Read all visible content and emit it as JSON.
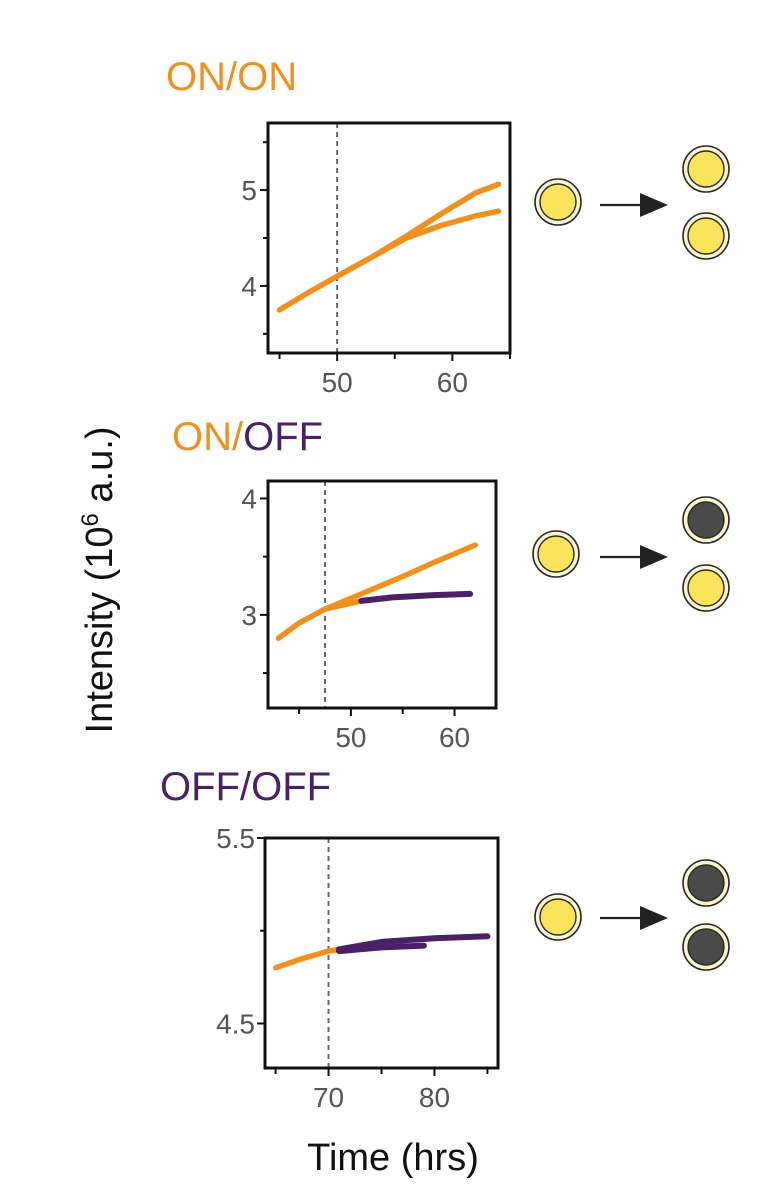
{
  "colors": {
    "on": "#F0901E",
    "off": "#4A2066",
    "cell_on_fill": "#F9E45C",
    "cell_off_fill": "#4A4A4A",
    "cell_ring": "#2E2A1F",
    "cell_ring_fill": "#FBF6D6",
    "arrow": "#222222",
    "axis": "#111111",
    "marker_line": "#666666"
  },
  "labels": {
    "ylabel_main": "Intensity (10",
    "ylabel_exp": "6",
    "ylabel_tail": " a.u.)",
    "xlabel": "Time (hrs)"
  },
  "chart_data": [
    {
      "type": "line",
      "title_parts": [
        {
          "text": "ON/ON",
          "state": "on"
        }
      ],
      "xlabel": "Time (hrs)",
      "ylabel": "Intensity (10^6 a.u.)",
      "xlim": [
        44,
        65
      ],
      "ylim": [
        3.3,
        5.7
      ],
      "xticks": [
        50,
        60
      ],
      "xminor": [
        45,
        55,
        65
      ],
      "yticks": [
        4,
        5
      ],
      "yminor": [
        3.5,
        4.5,
        5.5
      ],
      "ytick_labels": [
        "4",
        "5"
      ],
      "division_time": 50,
      "series": [
        {
          "state": "on",
          "x": [
            45,
            47.5,
            50
          ],
          "y": [
            3.75,
            3.93,
            4.1
          ]
        },
        {
          "state": "on",
          "x": [
            50,
            53,
            56,
            59,
            62,
            64
          ],
          "y": [
            4.1,
            4.3,
            4.52,
            4.75,
            4.97,
            5.06
          ]
        },
        {
          "state": "on",
          "x": [
            50,
            53,
            56,
            59,
            62,
            64
          ],
          "y": [
            4.1,
            4.3,
            4.5,
            4.63,
            4.73,
            4.78
          ]
        }
      ],
      "schematic": {
        "mother": "on",
        "daughters": [
          "on",
          "on"
        ]
      }
    },
    {
      "type": "line",
      "title_parts": [
        {
          "text": "ON/",
          "state": "on"
        },
        {
          "text": "OFF",
          "state": "off"
        }
      ],
      "xlabel": "Time (hrs)",
      "ylabel": "Intensity (10^6 a.u.)",
      "xlim": [
        42,
        64
      ],
      "ylim": [
        2.2,
        4.15
      ],
      "xticks": [
        50,
        60
      ],
      "xminor": [
        45,
        55,
        65
      ],
      "yticks": [
        3,
        4
      ],
      "yminor": [
        2.5,
        3.5
      ],
      "ytick_labels": [
        "3",
        "4"
      ],
      "division_time": 47.5,
      "series": [
        {
          "state": "on",
          "x": [
            43,
            45,
            47.5
          ],
          "y": [
            2.8,
            2.93,
            3.05
          ]
        },
        {
          "state": "on",
          "x": [
            47.5,
            51,
            55,
            58,
            62
          ],
          "y": [
            3.05,
            3.18,
            3.33,
            3.45,
            3.6
          ]
        },
        {
          "state": "on",
          "x": [
            47.5,
            49,
            51
          ],
          "y": [
            3.05,
            3.08,
            3.12
          ]
        },
        {
          "state": "off",
          "x": [
            51,
            54,
            58,
            61.5
          ],
          "y": [
            3.12,
            3.15,
            3.17,
            3.18
          ]
        }
      ],
      "schematic": {
        "mother": "on",
        "daughters": [
          "off",
          "on"
        ]
      }
    },
    {
      "type": "line",
      "title_parts": [
        {
          "text": "OFF/OFF",
          "state": "off"
        }
      ],
      "xlabel": "Time (hrs)",
      "ylabel": "Intensity (10^6 a.u.)",
      "xlim": [
        64,
        86
      ],
      "ylim": [
        4.26,
        5.5
      ],
      "xticks": [
        70,
        80
      ],
      "xminor": [
        65,
        75,
        85
      ],
      "yticks": [
        4.5,
        5.5
      ],
      "yminor": [
        5.0
      ],
      "ytick_labels": [
        "4.5",
        "5.5"
      ],
      "division_time": 70,
      "series": [
        {
          "state": "on",
          "x": [
            65,
            67.5,
            70,
            71
          ],
          "y": [
            4.8,
            4.85,
            4.89,
            4.9
          ]
        },
        {
          "state": "off",
          "x": [
            71,
            75,
            80,
            85
          ],
          "y": [
            4.9,
            4.94,
            4.96,
            4.97
          ]
        },
        {
          "state": "off",
          "x": [
            71,
            75,
            79
          ],
          "y": [
            4.89,
            4.91,
            4.92
          ]
        }
      ],
      "schematic": {
        "mother": "on",
        "daughters": [
          "off",
          "off"
        ]
      }
    }
  ]
}
